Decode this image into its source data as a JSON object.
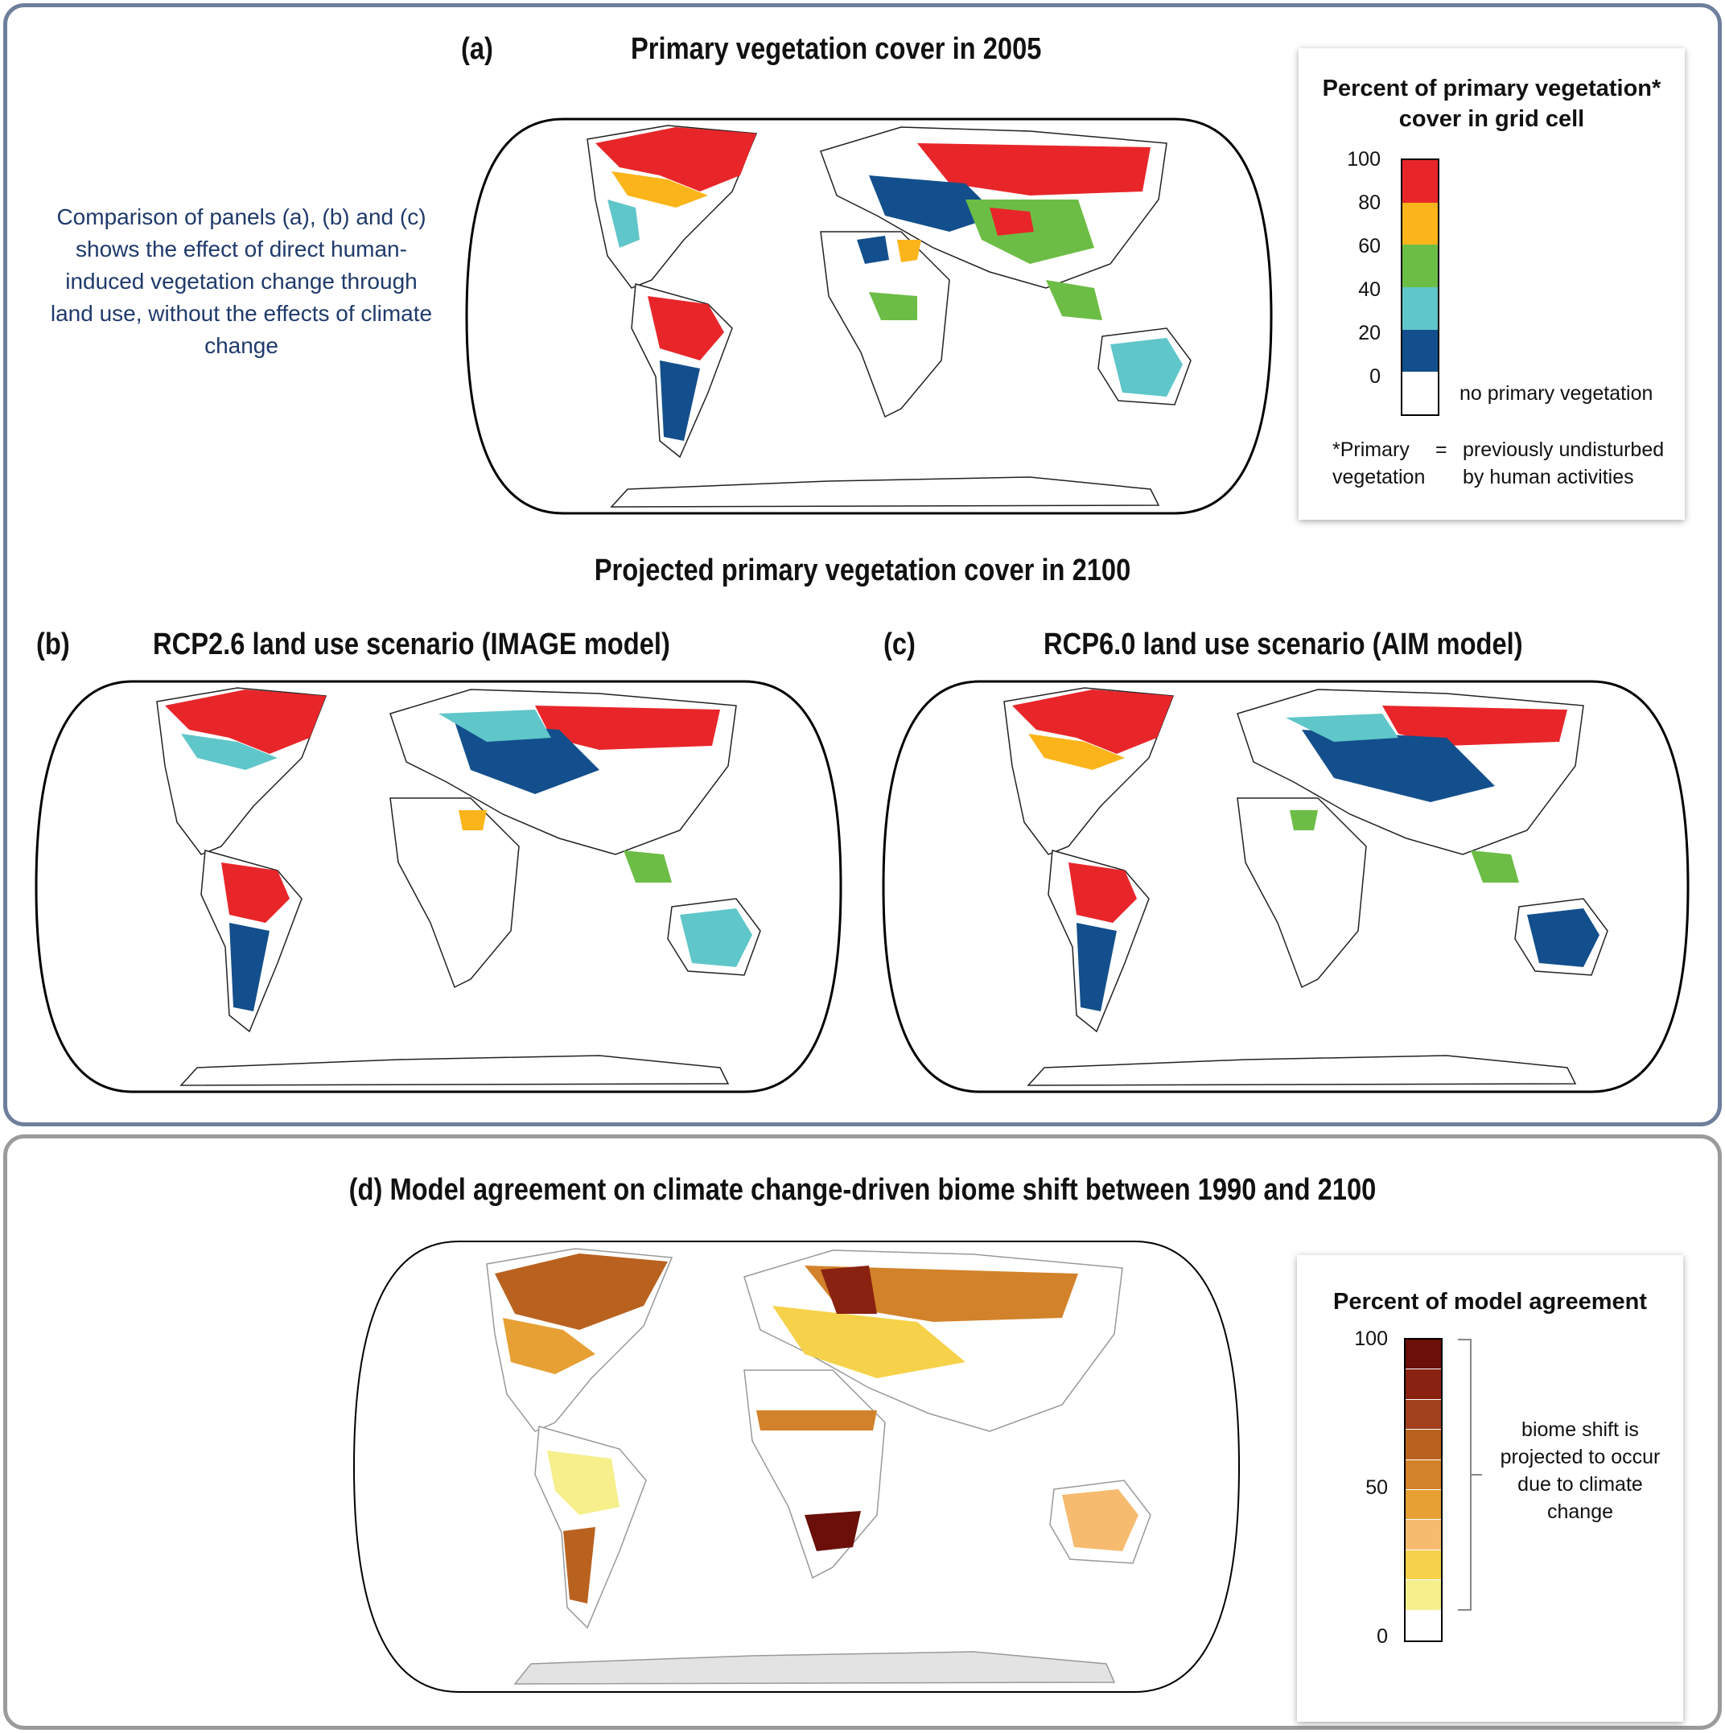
{
  "panel_a": {
    "label": "(a)",
    "title": "Primary vegetation cover in 2005",
    "note": "Comparison of panels (a), (b) and (c) shows the effect of direct human-induced vegetation change through land use, without the effects of climate change"
  },
  "projected_title": "Projected primary vegetation cover in 2100",
  "panel_b": {
    "label": "(b)",
    "title": "RCP2.6 land use scenario (IMAGE model)"
  },
  "panel_c": {
    "label": "(c)",
    "title": "RCP6.0 land use scenario (AIM model)"
  },
  "panel_d": {
    "title": "(d) Model agreement on climate change-driven biome shift between 1990 and 2100"
  },
  "legend_vegetation": {
    "title_line1": "Percent of primary vegetation*",
    "title_line2": "cover in grid cell",
    "ticks": [
      "100",
      "80",
      "60",
      "40",
      "20",
      "0"
    ],
    "colors": [
      "#e8262a",
      "#fbb41a",
      "#6cbd45",
      "#5fc6c9",
      "#134f8c"
    ],
    "none_color": "#ffffff",
    "none_label": "no primary vegetation",
    "footnote_term1": "*Primary",
    "footnote_term2": "vegetation",
    "footnote_equals": "=",
    "footnote_def1": "previously undisturbed",
    "footnote_def2": "by human activities"
  },
  "legend_agreement": {
    "title": "Percent of model agreement",
    "ticks": [
      "100",
      "50",
      "0"
    ],
    "colors": [
      "#6a0f0a",
      "#8a2212",
      "#a0401c",
      "#b9621f",
      "#d2822a",
      "#e6a034",
      "#f6bb6e",
      "#f6d24a",
      "#f6ef8c"
    ],
    "base_color": "#ffffff",
    "annotation": [
      "biome shift is",
      "projected to occur",
      "due to climate",
      "change"
    ]
  }
}
